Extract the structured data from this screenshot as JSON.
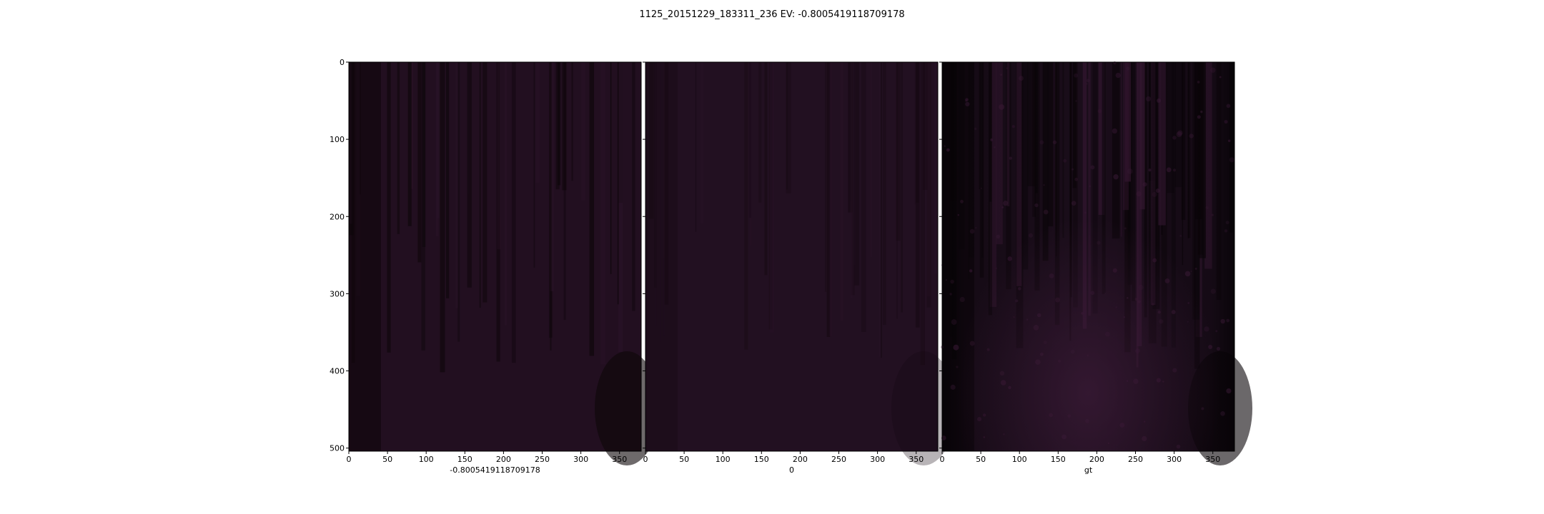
{
  "figure": {
    "title": "1125_20151229_183311_236 EV: -0.8005419118709178"
  },
  "chart_data": [
    {
      "type": "image",
      "xlabel": "-0.8005419118709178",
      "xlim": [
        0,
        378
      ],
      "ylim": [
        504,
        0
      ],
      "xticks": [
        0,
        50,
        100,
        150,
        200,
        250,
        300,
        350
      ],
      "yticks": [
        0,
        100,
        200,
        300,
        400,
        500
      ],
      "show_yticklabels": true,
      "base_color": "#220f20",
      "shadow_color": "#0d0609",
      "highlight_color": "#2a1428"
    },
    {
      "type": "image",
      "xlabel": "0",
      "xlim": [
        0,
        378
      ],
      "ylim": [
        504,
        0
      ],
      "xticks": [
        0,
        50,
        100,
        150,
        200,
        250,
        300,
        350
      ],
      "yticks": [
        0,
        100,
        200,
        300,
        400,
        500
      ],
      "show_yticklabels": false,
      "base_color": "#221021",
      "shadow_color": "#140810",
      "highlight_color": "#271226"
    },
    {
      "type": "image",
      "xlabel": "gt",
      "xlim": [
        0,
        378
      ],
      "ylim": [
        504,
        0
      ],
      "xticks": [
        0,
        50,
        100,
        150,
        200,
        250,
        300,
        350
      ],
      "yticks": [
        0,
        100,
        200,
        300,
        400,
        500
      ],
      "show_yticklabels": false,
      "base_color": "#1a0d1a",
      "shadow_color": "#090407",
      "highlight_color": "#3a1a36"
    }
  ]
}
